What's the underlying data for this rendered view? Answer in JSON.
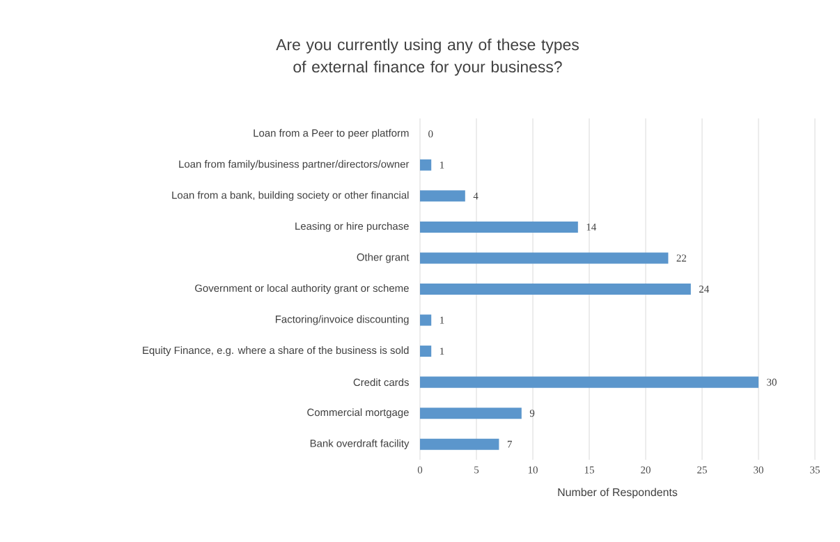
{
  "chart_data": {
    "type": "bar",
    "orientation": "horizontal",
    "title": "Are you currently using any of these types of external finance for your business?",
    "xlabel": "Number of Respondents",
    "categories": [
      "Loan from a Peer to peer platform",
      "Loan from family/business partner/directors/owner",
      "Loan from a bank, building society or other financial",
      "Leasing or hire purchase",
      "Other grant",
      "Government or local authority grant or scheme",
      "Factoring/invoice discounting",
      "Equity Finance, e.g. where a share of the business is sold",
      "Credit cards",
      "Commercial mortgage",
      "Bank overdraft facility"
    ],
    "values": [
      0,
      1,
      4,
      14,
      22,
      24,
      1,
      1,
      30,
      9,
      7
    ],
    "color": "#5b96cc",
    "data_labels": true,
    "grid": "x",
    "xlim": [
      0,
      35
    ],
    "xticks": [
      0,
      5,
      10,
      15,
      20,
      25,
      30,
      35
    ]
  }
}
